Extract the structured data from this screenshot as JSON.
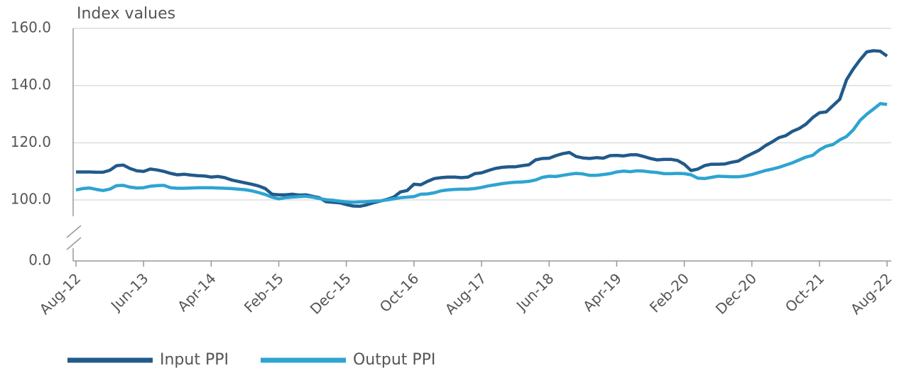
{
  "chart_data": {
    "type": "line",
    "y_axis_label": "Index values",
    "categories": [
      "Aug-12",
      null,
      null,
      null,
      null,
      null,
      null,
      null,
      null,
      null,
      "Jun-13",
      null,
      null,
      null,
      null,
      null,
      null,
      null,
      null,
      null,
      "Apr-14",
      null,
      null,
      null,
      null,
      null,
      null,
      null,
      null,
      null,
      "Feb-15",
      null,
      null,
      null,
      null,
      null,
      null,
      null,
      null,
      null,
      "Dec-15",
      null,
      null,
      null,
      null,
      null,
      null,
      null,
      null,
      null,
      "Oct-16",
      null,
      null,
      null,
      null,
      null,
      null,
      null,
      null,
      null,
      "Aug-17",
      null,
      null,
      null,
      null,
      null,
      null,
      null,
      null,
      null,
      "Jun-18",
      null,
      null,
      null,
      null,
      null,
      null,
      null,
      null,
      null,
      "Apr-19",
      null,
      null,
      null,
      null,
      null,
      null,
      null,
      null,
      null,
      "Feb-20",
      null,
      null,
      null,
      null,
      null,
      null,
      null,
      null,
      null,
      "Dec-20",
      null,
      null,
      null,
      null,
      null,
      null,
      null,
      null,
      null,
      "Oct-21",
      null,
      null,
      null,
      null,
      null,
      null,
      null,
      null,
      null,
      "Aug-22"
    ],
    "series": [
      {
        "name": "Input PPI",
        "color": "#215a8b",
        "values": [
          109.8,
          109.8,
          109.8,
          109.7,
          109.7,
          110.4,
          112.0,
          112.2,
          111.0,
          110.2,
          110.0,
          110.8,
          110.5,
          110.0,
          109.3,
          108.8,
          109.0,
          108.7,
          108.5,
          108.4,
          108.0,
          108.2,
          107.8,
          107.0,
          106.5,
          106.0,
          105.5,
          104.9,
          104.0,
          102.0,
          101.8,
          101.8,
          102.0,
          101.7,
          101.8,
          101.3,
          100.8,
          99.4,
          99.2,
          99.0,
          98.4,
          97.9,
          97.8,
          98.3,
          99.0,
          99.6,
          100.2,
          101.0,
          102.8,
          103.3,
          105.5,
          105.3,
          106.5,
          107.5,
          107.8,
          108.0,
          108.0,
          107.8,
          108.0,
          109.2,
          109.5,
          110.3,
          111.0,
          111.4,
          111.6,
          111.6,
          112.0,
          112.3,
          114.0,
          114.5,
          114.6,
          115.5,
          116.2,
          116.6,
          115.2,
          114.7,
          114.5,
          114.8,
          114.6,
          115.5,
          115.6,
          115.4,
          115.8,
          115.8,
          115.2,
          114.5,
          114.0,
          114.2,
          114.2,
          113.8,
          112.5,
          110.3,
          110.8,
          112.0,
          112.5,
          112.5,
          112.6,
          113.2,
          113.6,
          115.0,
          116.2,
          117.3,
          119.0,
          120.3,
          121.8,
          122.5,
          124.0,
          125.0,
          126.5,
          128.8,
          130.5,
          130.8,
          133.0,
          135.2,
          142.0,
          145.8,
          149.0,
          151.8,
          152.2,
          152.0,
          150.3
        ]
      },
      {
        "name": "Output PPI",
        "color": "#2ea4d2",
        "values": [
          103.5,
          104.0,
          104.2,
          103.7,
          103.3,
          103.8,
          105.0,
          105.1,
          104.5,
          104.2,
          104.3,
          104.8,
          105.0,
          105.1,
          104.3,
          104.1,
          104.1,
          104.2,
          104.3,
          104.3,
          104.3,
          104.2,
          104.1,
          104.0,
          103.8,
          103.6,
          103.2,
          102.6,
          101.9,
          101.0,
          100.4,
          100.8,
          101.0,
          101.2,
          101.3,
          101.0,
          100.5,
          100.1,
          99.9,
          99.6,
          99.3,
          99.2,
          99.3,
          99.4,
          99.6,
          99.7,
          100.0,
          100.4,
          100.8,
          101.0,
          101.2,
          102.0,
          102.1,
          102.5,
          103.2,
          103.5,
          103.7,
          103.8,
          103.8,
          104.0,
          104.4,
          104.9,
          105.3,
          105.7,
          106.0,
          106.2,
          106.3,
          106.5,
          107.0,
          107.9,
          108.3,
          108.2,
          108.6,
          109.0,
          109.3,
          109.1,
          108.6,
          108.6,
          108.9,
          109.2,
          109.8,
          110.1,
          109.9,
          110.2,
          110.1,
          109.8,
          109.6,
          109.2,
          109.2,
          109.3,
          109.2,
          108.8,
          107.6,
          107.5,
          107.9,
          108.3,
          108.2,
          108.1,
          108.1,
          108.4,
          108.9,
          109.6,
          110.3,
          110.8,
          111.4,
          112.2,
          113.0,
          114.0,
          115.0,
          115.6,
          117.5,
          118.8,
          119.4,
          121.0,
          122.2,
          124.5,
          127.8,
          130.0,
          131.8,
          133.7,
          133.4
        ]
      }
    ],
    "ylim": [
      0,
      160
    ],
    "yticks": [
      {
        "value": 0,
        "label": "0.0"
      },
      {
        "value": 100,
        "label": "100.0"
      },
      {
        "value": 120,
        "label": "120.0"
      },
      {
        "value": 140,
        "label": "140.0"
      },
      {
        "value": 160,
        "label": "160.0"
      }
    ],
    "axis_break": true,
    "grid": true,
    "legend": "bottom"
  }
}
